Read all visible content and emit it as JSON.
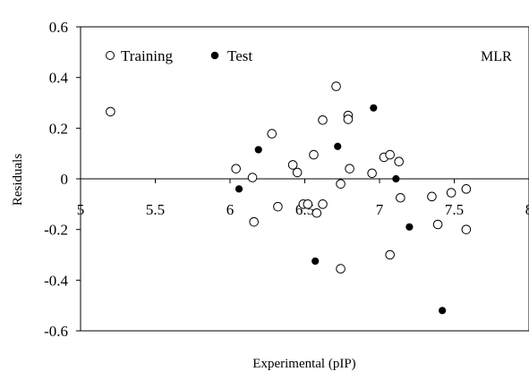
{
  "chart_data": {
    "type": "scatter",
    "xlabel": "Experimental (pIP)",
    "ylabel": "Residuals",
    "annotation": "MLR",
    "xlim": [
      5,
      8
    ],
    "ylim": [
      -0.6,
      0.6
    ],
    "x_ticks": [
      5,
      5.5,
      6,
      6.5,
      7,
      7.5,
      8
    ],
    "x_tick_labels": [
      "5",
      "5.5",
      "6",
      "6.5",
      "7",
      "7.5",
      "8"
    ],
    "y_ticks": [
      0.6,
      0.4,
      0.2,
      0,
      -0.2,
      -0.4,
      -0.6
    ],
    "y_tick_labels": [
      "0.6",
      "0.4",
      "0.2",
      "0",
      "-0.2",
      "-0.4",
      "-0.6"
    ],
    "legend_position": "top-left",
    "grid": false,
    "series": [
      {
        "name": "Training",
        "marker": "open-circle",
        "color": "#000000",
        "points": [
          [
            5.2,
            0.265
          ],
          [
            6.04,
            0.04
          ],
          [
            6.15,
            0.005
          ],
          [
            6.16,
            -0.17
          ],
          [
            6.28,
            0.178
          ],
          [
            6.32,
            -0.11
          ],
          [
            6.42,
            0.055
          ],
          [
            6.45,
            0.025
          ],
          [
            6.49,
            -0.1
          ],
          [
            6.52,
            -0.1
          ],
          [
            6.56,
            0.095
          ],
          [
            6.58,
            -0.135
          ],
          [
            6.62,
            0.232
          ],
          [
            6.62,
            -0.1
          ],
          [
            6.71,
            0.365
          ],
          [
            6.74,
            -0.02
          ],
          [
            6.74,
            -0.355
          ],
          [
            6.79,
            0.25
          ],
          [
            6.79,
            0.235
          ],
          [
            6.8,
            0.04
          ],
          [
            6.95,
            0.022
          ],
          [
            7.03,
            0.085
          ],
          [
            7.07,
            0.095
          ],
          [
            7.07,
            -0.3
          ],
          [
            7.13,
            0.068
          ],
          [
            7.14,
            -0.075
          ],
          [
            7.35,
            -0.07
          ],
          [
            7.39,
            -0.18
          ],
          [
            7.48,
            -0.055
          ],
          [
            7.58,
            -0.04
          ],
          [
            7.58,
            -0.2
          ]
        ]
      },
      {
        "name": "Test",
        "marker": "filled-circle",
        "color": "#000000",
        "points": [
          [
            6.06,
            -0.04
          ],
          [
            6.19,
            0.115
          ],
          [
            6.57,
            -0.325
          ],
          [
            6.72,
            0.128
          ],
          [
            6.96,
            0.28
          ],
          [
            7.11,
            0.0
          ],
          [
            7.2,
            -0.19
          ],
          [
            7.42,
            -0.52
          ]
        ]
      }
    ]
  }
}
